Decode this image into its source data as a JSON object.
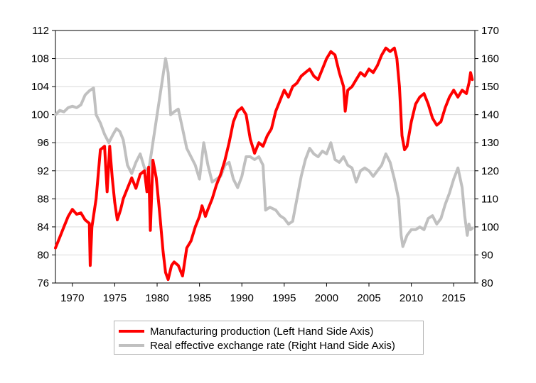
{
  "chart_data": {
    "type": "line",
    "title": "",
    "xlabel": "",
    "ylabel": "",
    "x_ticks": [
      "1970",
      "1975",
      "1980",
      "1985",
      "1990",
      "1995",
      "2000",
      "2005",
      "2010",
      "2015"
    ],
    "xlim": [
      1968.0,
      2017.5
    ],
    "y_left": {
      "ylim": [
        76,
        112
      ],
      "ticks": [
        "76",
        "80",
        "84",
        "88",
        "92",
        "96",
        "100",
        "104",
        "108",
        "112"
      ]
    },
    "y_right": {
      "ylim": [
        80,
        170
      ],
      "ticks": [
        "80",
        "90",
        "100",
        "110",
        "120",
        "130",
        "140",
        "150",
        "160",
        "170"
      ]
    },
    "grid": true,
    "legend_position": "bottom",
    "series": [
      {
        "name": "Manufacturing production (Left Hand Side Axis)",
        "axis": "left",
        "color": "#ff0000",
        "points": [
          [
            1968.0,
            81.0
          ],
          [
            1968.5,
            82.5
          ],
          [
            1969.0,
            84.0
          ],
          [
            1969.5,
            85.5
          ],
          [
            1970.0,
            86.5
          ],
          [
            1970.5,
            85.8
          ],
          [
            1971.0,
            86.0
          ],
          [
            1971.5,
            85.0
          ],
          [
            1972.0,
            84.5
          ],
          [
            1972.1,
            78.5
          ],
          [
            1972.3,
            84.0
          ],
          [
            1972.8,
            88.0
          ],
          [
            1973.3,
            95.0
          ],
          [
            1973.8,
            95.5
          ],
          [
            1974.1,
            89.0
          ],
          [
            1974.4,
            95.5
          ],
          [
            1974.7,
            91.0
          ],
          [
            1975.0,
            87.5
          ],
          [
            1975.3,
            85.0
          ],
          [
            1975.7,
            86.5
          ],
          [
            1976.0,
            88.0
          ],
          [
            1976.5,
            89.5
          ],
          [
            1977.0,
            91.0
          ],
          [
            1977.5,
            89.5
          ],
          [
            1978.0,
            91.5
          ],
          [
            1978.5,
            92.0
          ],
          [
            1978.8,
            89.0
          ],
          [
            1979.0,
            92.5
          ],
          [
            1979.2,
            83.5
          ],
          [
            1979.5,
            93.5
          ],
          [
            1979.9,
            91.0
          ],
          [
            1980.3,
            86.0
          ],
          [
            1980.7,
            80.5
          ],
          [
            1981.0,
            77.5
          ],
          [
            1981.3,
            76.5
          ],
          [
            1981.7,
            78.5
          ],
          [
            1982.0,
            79.0
          ],
          [
            1982.5,
            78.5
          ],
          [
            1983.0,
            77.0
          ],
          [
            1983.5,
            81.0
          ],
          [
            1984.0,
            82.0
          ],
          [
            1984.5,
            84.0
          ],
          [
            1985.0,
            85.5
          ],
          [
            1985.3,
            87.0
          ],
          [
            1985.7,
            85.5
          ],
          [
            1986.0,
            86.5
          ],
          [
            1986.5,
            88.0
          ],
          [
            1987.0,
            90.0
          ],
          [
            1987.5,
            91.5
          ],
          [
            1988.0,
            93.5
          ],
          [
            1988.5,
            96.0
          ],
          [
            1989.0,
            99.0
          ],
          [
            1989.5,
            100.5
          ],
          [
            1990.0,
            101.0
          ],
          [
            1990.5,
            100.0
          ],
          [
            1991.0,
            96.5
          ],
          [
            1991.5,
            94.5
          ],
          [
            1992.0,
            96.0
          ],
          [
            1992.5,
            95.5
          ],
          [
            1993.0,
            97.0
          ],
          [
            1993.5,
            98.0
          ],
          [
            1994.0,
            100.5
          ],
          [
            1994.5,
            102.0
          ],
          [
            1995.0,
            103.5
          ],
          [
            1995.5,
            102.5
          ],
          [
            1996.0,
            104.0
          ],
          [
            1996.5,
            104.5
          ],
          [
            1997.0,
            105.5
          ],
          [
            1997.5,
            106.0
          ],
          [
            1998.0,
            106.5
          ],
          [
            1998.5,
            105.5
          ],
          [
            1999.0,
            105.0
          ],
          [
            1999.5,
            106.5
          ],
          [
            2000.0,
            108.0
          ],
          [
            2000.5,
            109.0
          ],
          [
            2001.0,
            108.5
          ],
          [
            2001.5,
            106.0
          ],
          [
            2002.0,
            104.0
          ],
          [
            2002.2,
            100.5
          ],
          [
            2002.5,
            103.5
          ],
          [
            2003.0,
            104.0
          ],
          [
            2003.5,
            105.0
          ],
          [
            2004.0,
            106.0
          ],
          [
            2004.5,
            105.5
          ],
          [
            2005.0,
            106.5
          ],
          [
            2005.5,
            106.0
          ],
          [
            2006.0,
            107.0
          ],
          [
            2006.5,
            108.5
          ],
          [
            2007.0,
            109.5
          ],
          [
            2007.5,
            109.0
          ],
          [
            2008.0,
            109.5
          ],
          [
            2008.3,
            108.0
          ],
          [
            2008.6,
            104.0
          ],
          [
            2008.9,
            97.0
          ],
          [
            2009.2,
            95.0
          ],
          [
            2009.5,
            95.5
          ],
          [
            2010.0,
            99.0
          ],
          [
            2010.5,
            101.5
          ],
          [
            2011.0,
            102.5
          ],
          [
            2011.5,
            103.0
          ],
          [
            2012.0,
            101.5
          ],
          [
            2012.5,
            99.5
          ],
          [
            2013.0,
            98.5
          ],
          [
            2013.5,
            99.0
          ],
          [
            2014.0,
            101.0
          ],
          [
            2014.5,
            102.5
          ],
          [
            2015.0,
            103.5
          ],
          [
            2015.5,
            102.5
          ],
          [
            2016.0,
            103.5
          ],
          [
            2016.5,
            103.0
          ],
          [
            2016.8,
            104.5
          ],
          [
            2017.0,
            106.0
          ],
          [
            2017.2,
            105.0
          ]
        ]
      },
      {
        "name": "Real effective exchange rate (Right Hand Side Axis)",
        "axis": "right",
        "color": "#c0c0c0",
        "points": [
          [
            1968.0,
            140.0
          ],
          [
            1968.5,
            141.5
          ],
          [
            1969.0,
            141.0
          ],
          [
            1969.5,
            142.5
          ],
          [
            1970.0,
            143.0
          ],
          [
            1970.5,
            142.5
          ],
          [
            1971.0,
            143.5
          ],
          [
            1971.5,
            147.0
          ],
          [
            1972.0,
            148.5
          ],
          [
            1972.5,
            149.5
          ],
          [
            1972.8,
            140.0
          ],
          [
            1973.3,
            137.0
          ],
          [
            1973.8,
            133.0
          ],
          [
            1974.3,
            130.0
          ],
          [
            1974.8,
            133.0
          ],
          [
            1975.2,
            135.0
          ],
          [
            1975.6,
            134.0
          ],
          [
            1976.0,
            131.0
          ],
          [
            1976.5,
            122.0
          ],
          [
            1977.0,
            119.0
          ],
          [
            1977.5,
            123.0
          ],
          [
            1978.0,
            126.0
          ],
          [
            1978.5,
            121.0
          ],
          [
            1979.0,
            120.0
          ],
          [
            1979.5,
            130.0
          ],
          [
            1980.0,
            140.0
          ],
          [
            1980.5,
            150.0
          ],
          [
            1981.0,
            160.0
          ],
          [
            1981.3,
            155.0
          ],
          [
            1981.6,
            140.0
          ],
          [
            1982.0,
            141.0
          ],
          [
            1982.5,
            142.0
          ],
          [
            1983.0,
            135.0
          ],
          [
            1983.5,
            128.0
          ],
          [
            1984.0,
            125.0
          ],
          [
            1984.5,
            122.0
          ],
          [
            1985.0,
            117.0
          ],
          [
            1985.5,
            130.0
          ],
          [
            1986.0,
            122.0
          ],
          [
            1986.5,
            116.0
          ],
          [
            1987.0,
            117.0
          ],
          [
            1987.5,
            118.0
          ],
          [
            1988.0,
            122.0
          ],
          [
            1988.5,
            123.0
          ],
          [
            1989.0,
            117.0
          ],
          [
            1989.5,
            114.0
          ],
          [
            1990.0,
            118.0
          ],
          [
            1990.5,
            125.0
          ],
          [
            1991.0,
            125.0
          ],
          [
            1991.5,
            124.0
          ],
          [
            1992.0,
            125.0
          ],
          [
            1992.5,
            122.0
          ],
          [
            1992.8,
            106.0
          ],
          [
            1993.3,
            107.0
          ],
          [
            1994.0,
            106.0
          ],
          [
            1994.5,
            104.0
          ],
          [
            1995.0,
            103.0
          ],
          [
            1995.5,
            101.0
          ],
          [
            1996.0,
            102.0
          ],
          [
            1996.5,
            110.0
          ],
          [
            1997.0,
            118.0
          ],
          [
            1997.5,
            124.0
          ],
          [
            1998.0,
            128.0
          ],
          [
            1998.5,
            126.0
          ],
          [
            1999.0,
            125.0
          ],
          [
            1999.5,
            127.0
          ],
          [
            2000.0,
            126.0
          ],
          [
            2000.5,
            130.0
          ],
          [
            2001.0,
            124.0
          ],
          [
            2001.5,
            123.0
          ],
          [
            2002.0,
            125.0
          ],
          [
            2002.5,
            122.0
          ],
          [
            2003.0,
            121.0
          ],
          [
            2003.5,
            116.0
          ],
          [
            2004.0,
            120.0
          ],
          [
            2004.5,
            121.0
          ],
          [
            2005.0,
            120.0
          ],
          [
            2005.5,
            118.0
          ],
          [
            2006.0,
            120.0
          ],
          [
            2006.5,
            122.0
          ],
          [
            2007.0,
            126.0
          ],
          [
            2007.5,
            123.0
          ],
          [
            2008.0,
            117.0
          ],
          [
            2008.5,
            110.0
          ],
          [
            2008.8,
            97.0
          ],
          [
            2009.0,
            93.0
          ],
          [
            2009.5,
            97.0
          ],
          [
            2010.0,
            99.0
          ],
          [
            2010.5,
            99.0
          ],
          [
            2011.0,
            100.0
          ],
          [
            2011.5,
            99.0
          ],
          [
            2012.0,
            103.0
          ],
          [
            2012.5,
            104.0
          ],
          [
            2013.0,
            101.0
          ],
          [
            2013.5,
            103.0
          ],
          [
            2014.0,
            108.0
          ],
          [
            2014.5,
            112.0
          ],
          [
            2015.0,
            117.0
          ],
          [
            2015.5,
            121.0
          ],
          [
            2016.0,
            114.0
          ],
          [
            2016.3,
            104.0
          ],
          [
            2016.6,
            97.0
          ],
          [
            2016.8,
            101.0
          ],
          [
            2017.0,
            99.0
          ],
          [
            2017.2,
            99.5
          ]
        ]
      }
    ]
  }
}
